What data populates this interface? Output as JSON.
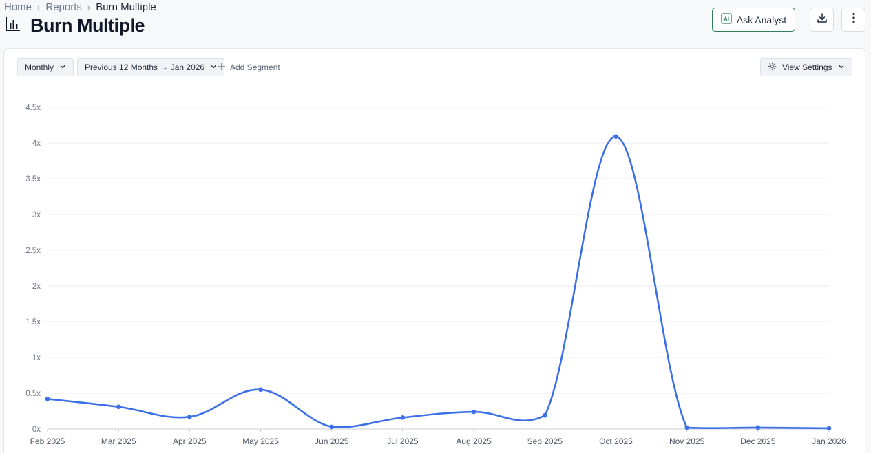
{
  "breadcrumb": {
    "home": "Home",
    "reports": "Reports",
    "current": "Burn Multiple"
  },
  "page": {
    "title": "Burn Multiple"
  },
  "toolbar": {
    "ask_analyst_label": "Ask Analyst"
  },
  "filters": {
    "interval": "Monthly",
    "period": "Previous 12 Months → Jan 2026",
    "add_segment": "Add Segment",
    "view_settings": "View Settings"
  },
  "icons": {
    "report": "bar-chart-icon",
    "analyst": "ai-icon",
    "download": "download-icon",
    "more": "more-vertical-icon",
    "add": "plus-icon",
    "settings": "gear-icon",
    "dropdown": "chevron-down-icon"
  },
  "colors": {
    "line": "#3b6fe8",
    "accent": "#2f7d5b",
    "grid": "#e8ebf0"
  },
  "chart_data": {
    "type": "line",
    "categories": [
      "Feb 2025",
      "Mar 2025",
      "Apr 2025",
      "May 2025",
      "Jun 2025",
      "Jul 2025",
      "Aug 2025",
      "Sep 2025",
      "Oct 2025",
      "Nov 2025",
      "Dec 2025",
      "Jan 2026"
    ],
    "values": [
      0.42,
      0.31,
      0.17,
      0.55,
      0.03,
      0.16,
      0.24,
      0.19,
      4.09,
      0.02,
      0.02,
      0.01
    ],
    "ylim": [
      0,
      4.5
    ],
    "yticks": [
      "0x",
      "0.5x",
      "1x",
      "1.5x",
      "2x",
      "2.5x",
      "3x",
      "3.5x",
      "4x",
      "4.5x"
    ],
    "grid": true
  }
}
